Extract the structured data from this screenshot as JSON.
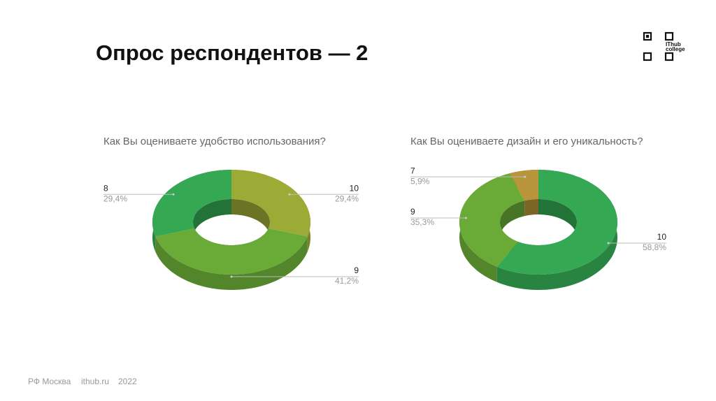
{
  "slide": {
    "title": "Опрос респондентов — 2",
    "logo": [
      "IThub",
      "college"
    ],
    "footer": [
      "РФ Москва",
      "ithub.ru",
      "2022"
    ]
  },
  "chart_data": [
    {
      "type": "donut",
      "title": "Как Вы оцениваете удобство использования?",
      "categories": [
        "10",
        "9",
        "8"
      ],
      "values": [
        29.4,
        41.2,
        29.4
      ],
      "value_labels": [
        "29,4%",
        "41,2%",
        "29,4%"
      ],
      "colors": [
        "#9cab35",
        "#6aaa37",
        "#34a853"
      ]
    },
    {
      "type": "donut",
      "title": "Как Вы оцениваете дизайн и его уникальность?",
      "categories": [
        "10",
        "9",
        "7"
      ],
      "values": [
        58.8,
        35.3,
        5.9
      ],
      "value_labels": [
        "58,8%",
        "35,3%",
        "5,9%"
      ],
      "colors": [
        "#34a853",
        "#6aaa37",
        "#b8943a"
      ]
    }
  ]
}
